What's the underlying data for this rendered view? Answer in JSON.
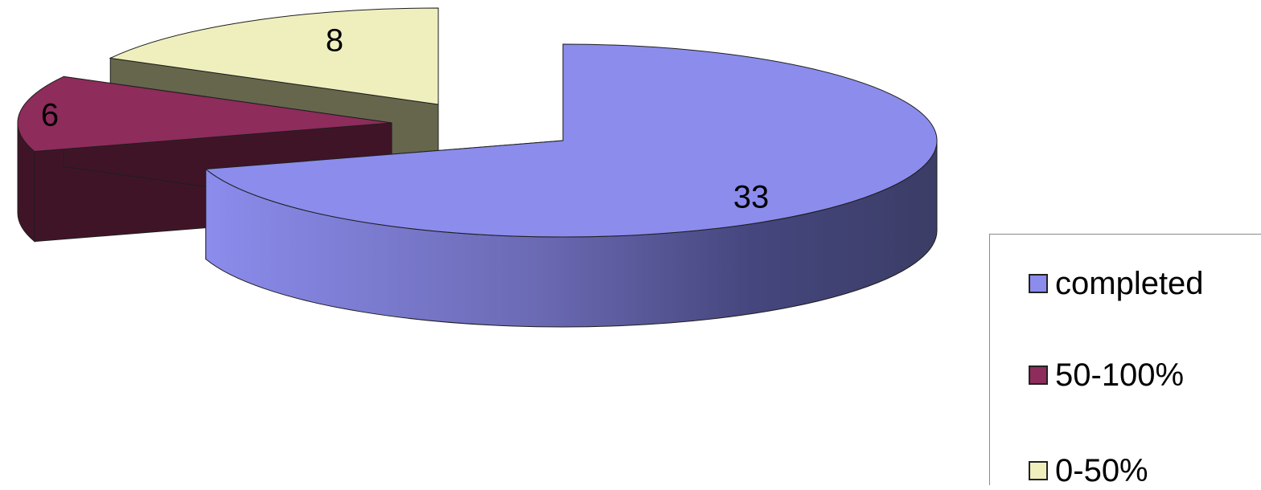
{
  "chart_data": {
    "type": "pie",
    "style": "3d-exploded",
    "title": "",
    "categories": [
      "completed",
      "50-100%",
      "0-50%"
    ],
    "values": [
      33,
      6,
      8
    ],
    "colors": [
      "#8b8cec",
      "#8e2c5c",
      "#efefbe"
    ],
    "side_colors": [
      "#4a4d8c",
      "#401427",
      "#66664d"
    ],
    "data_labels": [
      "33",
      "6",
      "8"
    ],
    "legend": {
      "placement": "right",
      "items": [
        {
          "label": "completed",
          "color": "#8b8cec"
        },
        {
          "label": "50-100%",
          "color": "#8e2c5c"
        },
        {
          "label": "0-50%",
          "color": "#efefbe"
        }
      ]
    }
  }
}
